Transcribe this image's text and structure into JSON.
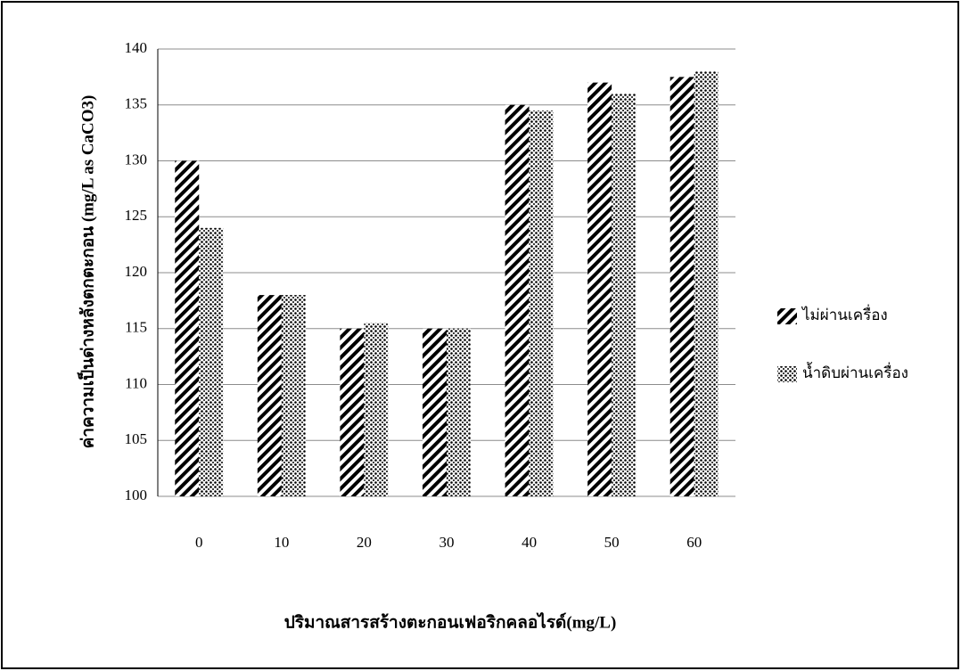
{
  "chart_data": {
    "type": "bar",
    "x_label": "ปริมาณสารสร้างตะกอนเฟอริกคลอไรด์(mg/L)",
    "y_label": "ค่าความเป็นด่างหลังตกตะกอน (mg/L as CaCO3)",
    "categories": [
      "0",
      "10",
      "20",
      "30",
      "40",
      "50",
      "60"
    ],
    "series": [
      {
        "name": "ไม่ผ่านเครื่อง",
        "pattern": "hatch",
        "color": "#000000",
        "values": [
          130,
          118,
          115,
          115,
          135,
          137,
          137.5
        ]
      },
      {
        "name": "น้ำดิบผ่านเครื่อง",
        "pattern": "dots",
        "color": "#000000",
        "values": [
          124,
          118,
          115.5,
          115,
          134.5,
          136,
          138
        ]
      }
    ],
    "ylim": [
      100,
      140
    ],
    "yticks": [
      100,
      105,
      110,
      115,
      120,
      125,
      130,
      135,
      140
    ],
    "grid": true,
    "legend": "right"
  }
}
